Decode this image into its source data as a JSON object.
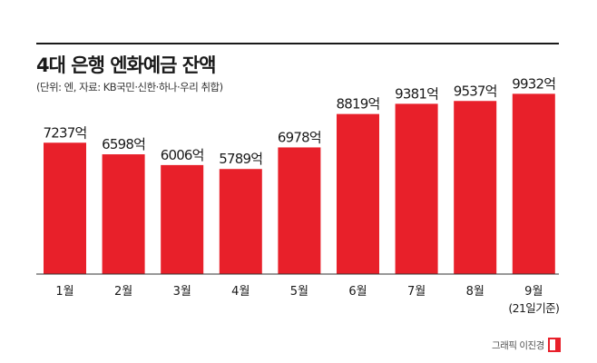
{
  "title": "4대 은행 엔화예금 잔액",
  "subtitle": "(단위: 엔, 자료: KB국민·신한·하나·우리 취합)",
  "credit": "그래픽 이진경",
  "colors": {
    "bar": "#e8202a",
    "text": "#1a1a1a",
    "baseline": "#333333",
    "logo": "#e8202a"
  },
  "icons": {
    "credit_logo": "newspaper-logo-icon"
  },
  "chart_data": {
    "type": "bar",
    "title": "4대 은행 엔화예금 잔액",
    "xlabel": "",
    "ylabel": "",
    "grid": false,
    "legend": "none",
    "ylim": [
      0,
      10000
    ],
    "categories": [
      "1월",
      "2월",
      "3월",
      "4월",
      "5월",
      "6월",
      "7월",
      "8월",
      "9월"
    ],
    "category_notes": [
      "",
      "",
      "",
      "",
      "",
      "",
      "",
      "",
      "(21일기준)"
    ],
    "values": [
      7237,
      6598,
      6006,
      5789,
      6978,
      8819,
      9381,
      9537,
      9932
    ],
    "value_labels": [
      "7237억",
      "6598억",
      "6006억",
      "5789억",
      "6978억",
      "8819억",
      "9381억",
      "9537억",
      "9932억"
    ]
  }
}
